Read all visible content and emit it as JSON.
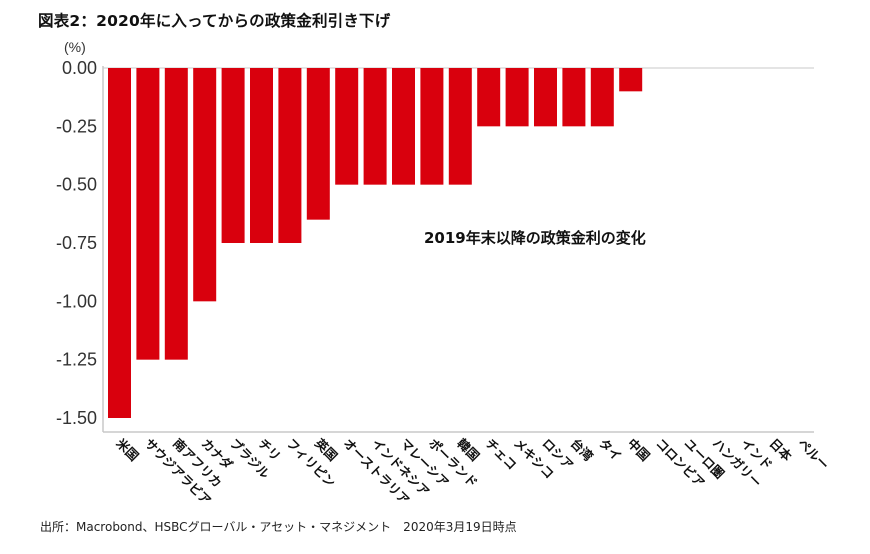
{
  "chart_data": {
    "type": "bar",
    "title": "図表2：2020年に入ってからの政策金利引き下げ",
    "ylabel": "(%)",
    "xlabel": "",
    "ylim": [
      -1.5,
      0.0
    ],
    "yticks": [
      "0.00",
      "-0.25",
      "-0.50",
      "-0.75",
      "-1.00",
      "-1.25",
      "-1.50"
    ],
    "ytick_values": [
      0.0,
      -0.25,
      -0.5,
      -0.75,
      -1.0,
      -1.25,
      -1.5
    ],
    "grid": false,
    "legend": null,
    "annotation": "2019年末以降の政策金利の変化",
    "bar_color": "#d9000d",
    "categories": [
      "米国",
      "サウジアラビア",
      "南アフリカ",
      "カナダ",
      "ブラジル",
      "チリ",
      "フィリピン",
      "英国",
      "オーストラリア",
      "インドネシア",
      "マレーシア",
      "ポーランド",
      "韓国",
      "チェコ",
      "メキシコ",
      "ロシア",
      "台湾",
      "タイ",
      "中国",
      "コロンビア",
      "ユーロ圏",
      "ハンガリー",
      "インド",
      "日本",
      "ペルー"
    ],
    "values": [
      -1.5,
      -1.25,
      -1.25,
      -1.0,
      -0.75,
      -0.75,
      -0.75,
      -0.65,
      -0.5,
      -0.5,
      -0.5,
      -0.5,
      -0.5,
      -0.25,
      -0.25,
      -0.25,
      -0.25,
      -0.25,
      -0.1,
      0,
      0,
      0,
      0,
      0,
      0
    ]
  },
  "footer": {
    "source": "出所：Macrobond、HSBCグローバル・アセット・マネジメント　2020年3月19日時点"
  }
}
